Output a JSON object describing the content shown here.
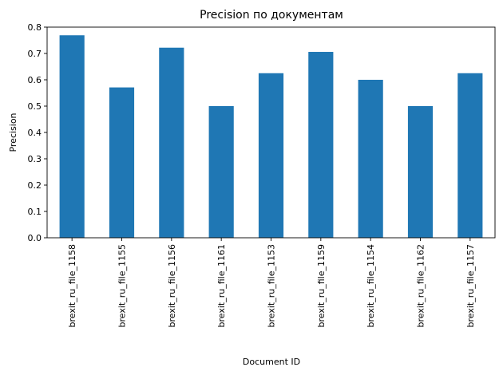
{
  "chart_data": {
    "type": "bar",
    "title": "Precision по документам",
    "xlabel": "Document ID",
    "ylabel": "Precision",
    "categories": [
      "brexit_ru_file_1158",
      "brexit_ru_file_1155",
      "brexit_ru_file_1156",
      "brexit_ru_file_1161",
      "brexit_ru_file_1153",
      "brexit_ru_file_1159",
      "brexit_ru_file_1154",
      "brexit_ru_file_1162",
      "brexit_ru_file_1157"
    ],
    "values": [
      0.769,
      0.571,
      0.722,
      0.5,
      0.625,
      0.706,
      0.6,
      0.5,
      0.625
    ],
    "ylim": [
      0,
      0.8
    ],
    "yticks": [
      "0.0",
      "0.1",
      "0.2",
      "0.3",
      "0.4",
      "0.5",
      "0.6",
      "0.7",
      "0.8"
    ],
    "grid": false,
    "legend": "none",
    "bar_color": "#1f77b4"
  }
}
